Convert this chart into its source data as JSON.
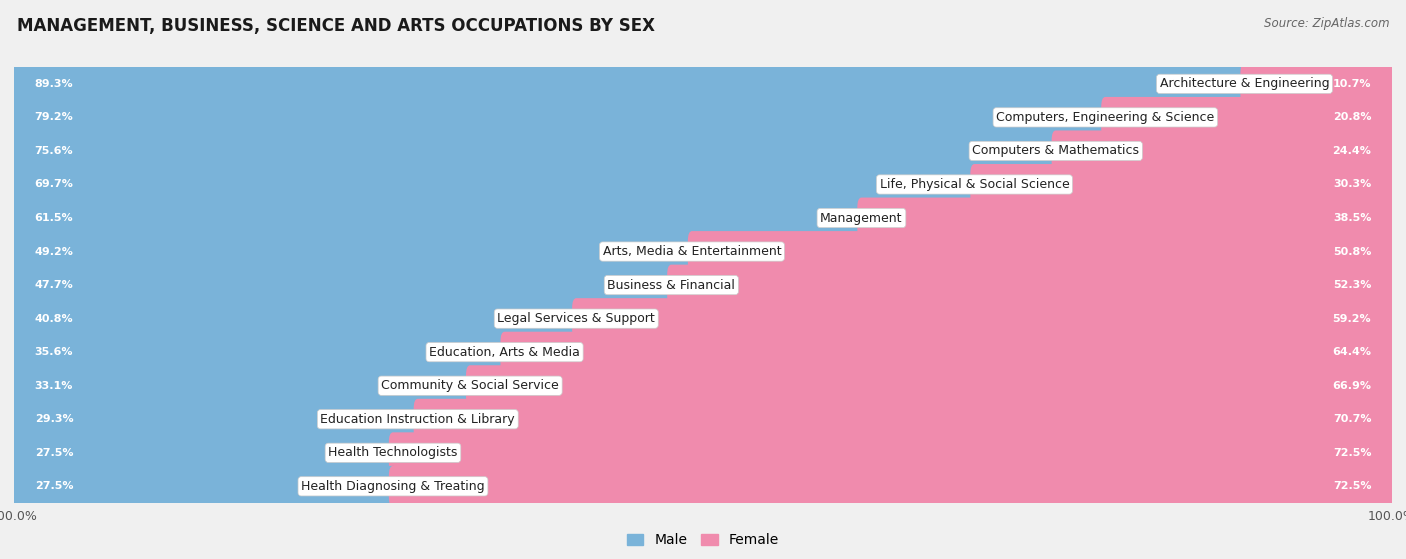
{
  "title": "MANAGEMENT, BUSINESS, SCIENCE AND ARTS OCCUPATIONS BY SEX",
  "source": "Source: ZipAtlas.com",
  "categories": [
    "Architecture & Engineering",
    "Computers, Engineering & Science",
    "Computers & Mathematics",
    "Life, Physical & Social Science",
    "Management",
    "Arts, Media & Entertainment",
    "Business & Financial",
    "Legal Services & Support",
    "Education, Arts & Media",
    "Community & Social Service",
    "Education Instruction & Library",
    "Health Technologists",
    "Health Diagnosing & Treating"
  ],
  "male_pct": [
    89.3,
    79.2,
    75.6,
    69.7,
    61.5,
    49.2,
    47.7,
    40.8,
    35.6,
    33.1,
    29.3,
    27.5,
    27.5
  ],
  "female_pct": [
    10.7,
    20.8,
    24.4,
    30.3,
    38.5,
    50.8,
    52.3,
    59.2,
    64.4,
    66.9,
    70.7,
    72.5,
    72.5
  ],
  "male_color": "#7ab3d9",
  "female_color": "#f08bad",
  "bg_color": "#f0f0f0",
  "row_bg_light": "#f8f8f8",
  "row_bg_dark": "#ececec",
  "title_fontsize": 12,
  "label_fontsize": 9,
  "bar_label_fontsize": 8,
  "legend_fontsize": 10,
  "source_fontsize": 8.5
}
